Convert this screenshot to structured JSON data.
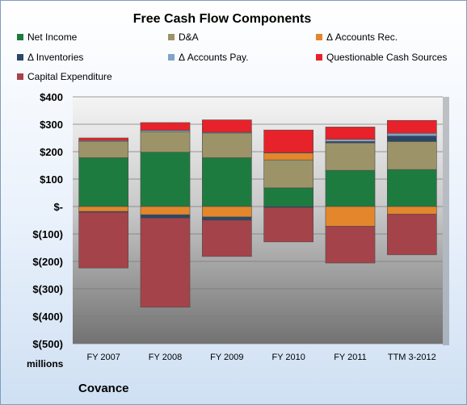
{
  "chart_data": {
    "type": "bar",
    "stacked": true,
    "title": "Free Cash Flow Components",
    "unit_label": "millions",
    "company": "Covance",
    "categories": [
      "FY 2007",
      "FY 2008",
      "FY 2009",
      "FY 2010",
      "FY 2011",
      "TTM 3-2012"
    ],
    "ylim": [
      -500,
      400
    ],
    "yticks": [
      400,
      300,
      200,
      100,
      0,
      -100,
      -200,
      -300,
      -400,
      -500
    ],
    "ytick_labels": [
      "$400",
      "$300",
      "$200",
      "$100",
      "$-",
      "$(100)",
      "$(200)",
      "$(300)",
      "$(400)",
      "$(500)"
    ],
    "grid": true,
    "legend_position": "top",
    "series": [
      {
        "name": "Net Income",
        "color": "#1e7b3f",
        "values": [
          178,
          198,
          178,
          68,
          132,
          135
        ]
      },
      {
        "name": "D&A",
        "color": "#9c9468",
        "values": [
          60,
          75,
          90,
          102,
          100,
          102
        ]
      },
      {
        "name": "Δ Accounts Rec.",
        "color": "#e3862c",
        "values": [
          -18,
          -30,
          -38,
          25,
          -72,
          -28
        ]
      },
      {
        "name": "Δ Inventories",
        "color": "#2c4766",
        "values": [
          -3,
          -12,
          -12,
          -4,
          5,
          20
        ]
      },
      {
        "name": "Δ Accounts Pay.",
        "color": "#7fa3c9",
        "values": [
          3,
          5,
          3,
          2,
          8,
          10
        ]
      },
      {
        "name": "Questionable Cash Sources",
        "color": "#e8222a",
        "values": [
          9,
          28,
          45,
          82,
          45,
          47
        ]
      },
      {
        "name": "Capital Expenditure",
        "color": "#a5434a",
        "values": [
          -203,
          -325,
          -132,
          -125,
          -134,
          -148
        ]
      }
    ]
  }
}
